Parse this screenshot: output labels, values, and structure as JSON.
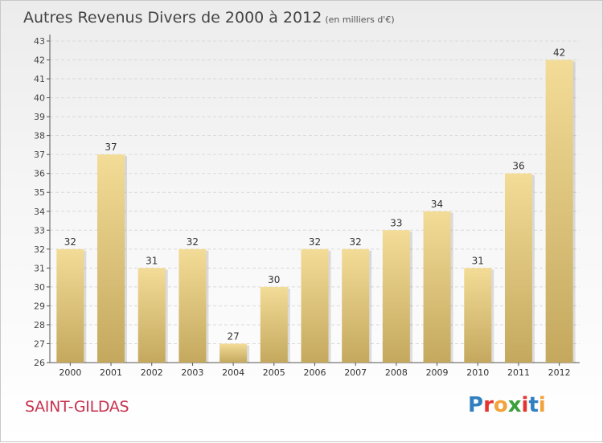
{
  "title": "Autres Revenus Divers de 2000 à 2012",
  "unit": "(en milliers d'€)",
  "commune": "SAINT-GILDAS",
  "brand": {
    "text": "Proxiti",
    "colors": [
      "#2f7fc1",
      "#e3342f",
      "#f2a33a",
      "#3aa03a",
      "#e3342f",
      "#2f7fc1",
      "#f2a33a"
    ]
  },
  "colors": {
    "bar_light": "#f3dc97",
    "bar_dark": "#c4a85e",
    "grid": "#d9d9d9",
    "axis": "#555555"
  },
  "chart_data": {
    "type": "bar",
    "categories": [
      "2000",
      "2001",
      "2002",
      "2003",
      "2004",
      "2005",
      "2006",
      "2007",
      "2008",
      "2009",
      "2010",
      "2011",
      "2012"
    ],
    "values": [
      32,
      37,
      31,
      32,
      27,
      30,
      32,
      32,
      33,
      34,
      31,
      36,
      42
    ],
    "data_labels": [
      "32",
      "37",
      "31",
      "32",
      "27",
      "30",
      "32",
      "32",
      "33",
      "34",
      "31",
      "36",
      "42"
    ],
    "title": "Autres Revenus Divers de 2000 à 2012",
    "xlabel": "",
    "ylabel": "",
    "ylim": [
      26,
      43
    ],
    "yticks": [
      26,
      27,
      28,
      29,
      30,
      31,
      32,
      33,
      34,
      35,
      36,
      37,
      38,
      39,
      40,
      41,
      42,
      43
    ],
    "grid": true,
    "legend": "none"
  }
}
